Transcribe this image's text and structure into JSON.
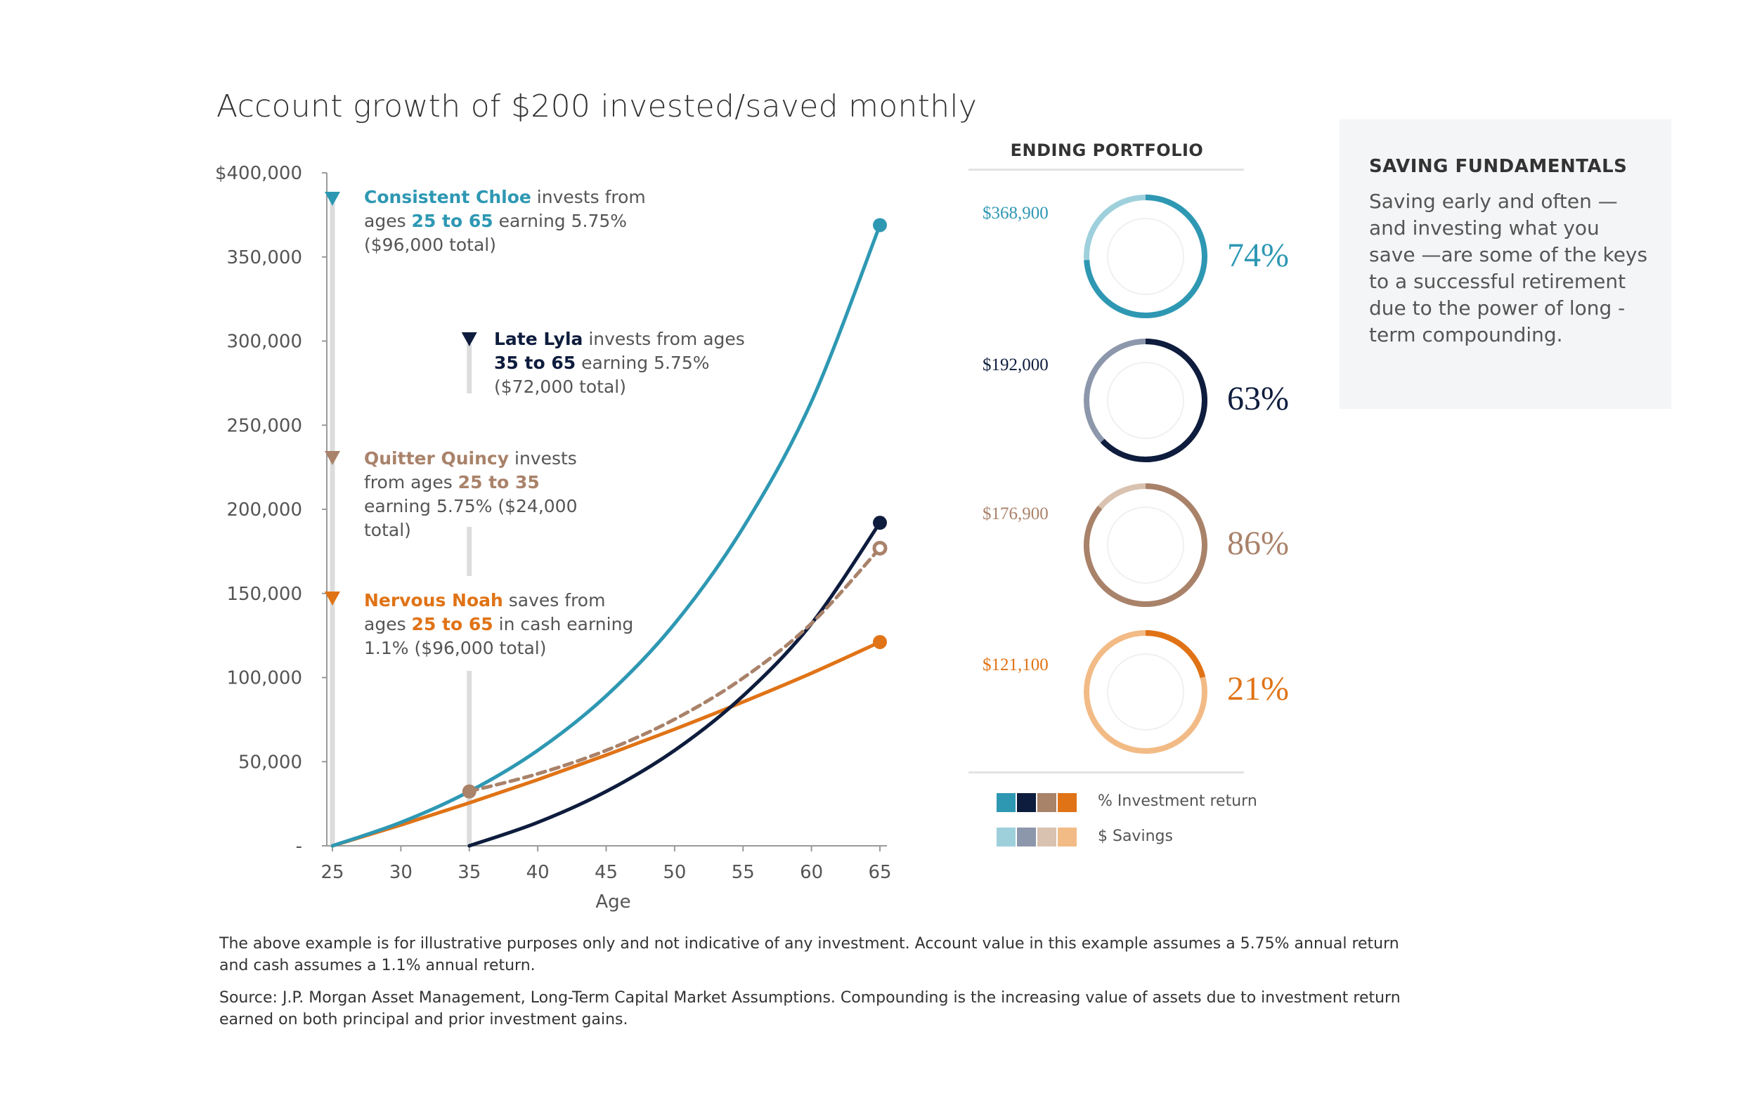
{
  "title": "Account growth of $200 invested/saved monthly",
  "colors": {
    "chloe": "#2e98b3",
    "lyla": "#0e1c3d",
    "quincy": "#a9826a",
    "noah": "#e07316",
    "chloe_light": "#9ed0dc",
    "lyla_light": "#8d97ab",
    "quincy_light": "#d9c2b0",
    "noah_light": "#f2bb86"
  },
  "chart_data": {
    "type": "line",
    "xlabel": "Age",
    "ylabel": "",
    "x_ticks": [
      "25",
      "30",
      "35",
      "40",
      "45",
      "50",
      "55",
      "60",
      "65"
    ],
    "y_ticks": [
      "$400,000",
      "350,000",
      "300,000",
      "250,000",
      "200,000",
      "150,000",
      "100,000",
      "50,000",
      "-"
    ],
    "xlim": [
      25,
      65
    ],
    "ylim": [
      0,
      400000
    ],
    "grid": false,
    "series": [
      {
        "name": "Consistent Chloe",
        "color": "#2e98b3",
        "dashed": false,
        "end_marker": "filled",
        "x": [
          25,
          30,
          35,
          40,
          45,
          50,
          55,
          60,
          65
        ],
        "y": [
          0,
          13900,
          32300,
          56700,
          89100,
          132000,
          189000,
          264000,
          368900
        ]
      },
      {
        "name": "Late Lyla",
        "color": "#0e1c3d",
        "dashed": false,
        "end_marker": "filled",
        "x": [
          35,
          40,
          45,
          50,
          55,
          60,
          65
        ],
        "y": [
          0,
          13900,
          32300,
          56700,
          89100,
          132000,
          192000
        ]
      },
      {
        "name": "Quitter Quincy",
        "color": "#a9826a",
        "dashed": true,
        "end_marker": "open",
        "start_marker": "filled",
        "x": [
          35,
          40,
          45,
          50,
          55,
          60,
          65
        ],
        "y": [
          32300,
          42800,
          56700,
          75200,
          99700,
          132200,
          176900
        ]
      },
      {
        "name": "Nervous Noah",
        "color": "#e07316",
        "dashed": false,
        "end_marker": "filled",
        "x": [
          25,
          30,
          35,
          40,
          45,
          50,
          55,
          60,
          65
        ],
        "y": [
          0,
          12400,
          25500,
          39300,
          53900,
          69300,
          85500,
          102600,
          121100
        ]
      }
    ]
  },
  "annotations": {
    "chloe": {
      "name": "Consistent Chloe",
      "t1": " invests from ages ",
      "ages": "25 to 65",
      "t2": " earning 5.75% ($96,000 total)"
    },
    "lyla": {
      "name": "Late Lyla",
      "t1": " invests from ages ",
      "ages": "35 to 65",
      "t2": " earning 5.75% ($72,000 total)"
    },
    "quincy": {
      "name": "Quitter Quincy",
      "t1": " invests from ages ",
      "ages": "25 to 35",
      "t2": " earning 5.75% ($24,000 total)"
    },
    "noah": {
      "name": "Nervous Noah",
      "t1": " saves from ages ",
      "ages": "25 to 65",
      "t2": " in cash earning 1.1% ($96,000 total)"
    }
  },
  "ending_portfolio": {
    "title": "ENDING PORTFOLIO",
    "items": [
      {
        "value": "$368,900",
        "percent": "74%",
        "fraction": 0.74
      },
      {
        "value": "$192,000",
        "percent": "63%",
        "fraction": 0.63
      },
      {
        "value": "$176,900",
        "percent": "86%",
        "fraction": 0.86
      },
      {
        "value": "$121,100",
        "percent": "21%",
        "fraction": 0.21
      }
    ],
    "legend": {
      "investment": "% Investment return",
      "savings": "$ Savings"
    }
  },
  "sidebar": {
    "title": "SAVING FUNDAMENTALS",
    "body": "Saving early and often —and investing what you save —are some of the keys to a successful retirement due to the power of long -term compounding."
  },
  "footnotes": {
    "note1": "The above example is for illustrative purposes only and not indicative of any investment. Account value in this example assumes a 5.75% annual return and cash assumes a 1.1% annual return.",
    "note2": "Source: J.P. Morgan Asset Management, Long-Term Capital Market Assumptions. Compounding is the increasing value of assets due to investment return earned on both principal and prior investment gains."
  }
}
